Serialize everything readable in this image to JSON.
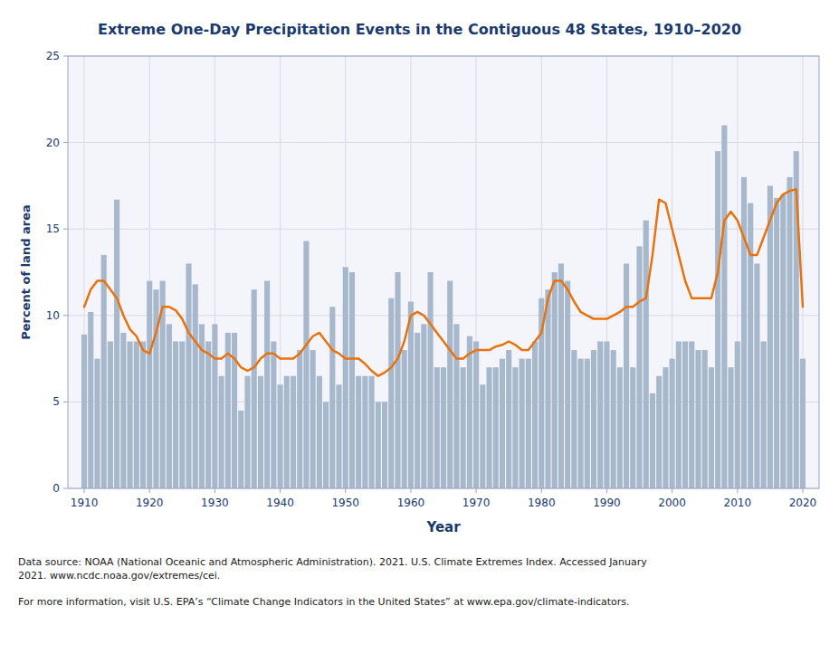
{
  "chart_data": {
    "type": "bar",
    "title": "Extreme One-Day Precipitation Events in the Contiguous 48 States, 1910–2020",
    "x_label": "Year",
    "y_label": "Percent of land area",
    "annotations": [
      "Data source: NOAA (National Oceanic and Atmospheric Administration). 2021. U.S. Climate Extremes Index. Accessed January\n2021. www.ncdc.noaa.gov/extremes/cei.",
      "For more information, visit U.S. EPA’s “Climate Change Indicators in the United States” at www.epa.gov/climate-indicators."
    ],
    "x": [
      1910,
      1911,
      1912,
      1913,
      1914,
      1915,
      1916,
      1917,
      1918,
      1919,
      1920,
      1921,
      1922,
      1923,
      1924,
      1925,
      1926,
      1927,
      1928,
      1929,
      1930,
      1931,
      1932,
      1933,
      1934,
      1935,
      1936,
      1937,
      1938,
      1939,
      1940,
      1941,
      1942,
      1943,
      1944,
      1945,
      1946,
      1947,
      1948,
      1949,
      1950,
      1951,
      1952,
      1953,
      1954,
      1955,
      1956,
      1957,
      1958,
      1959,
      1960,
      1961,
      1962,
      1963,
      1964,
      1965,
      1966,
      1967,
      1968,
      1969,
      1970,
      1971,
      1972,
      1973,
      1974,
      1975,
      1976,
      1977,
      1978,
      1979,
      1980,
      1981,
      1982,
      1983,
      1984,
      1985,
      1986,
      1987,
      1988,
      1989,
      1990,
      1991,
      1992,
      1993,
      1994,
      1995,
      1996,
      1997,
      1998,
      1999,
      2000,
      2001,
      2002,
      2003,
      2004,
      2005,
      2006,
      2007,
      2008,
      2009,
      2010,
      2011,
      2012,
      2013,
      2014,
      2015,
      2016,
      2017,
      2018,
      2019,
      2020
    ],
    "series": [
      {
        "type": "bar",
        "color": "#a8b8cc",
        "values": [
          8.9,
          10.2,
          7.5,
          13.5,
          8.5,
          16.7,
          9.0,
          8.5,
          8.5,
          8.5,
          12.0,
          11.5,
          12.0,
          9.5,
          8.5,
          8.5,
          13.0,
          11.8,
          9.5,
          8.5,
          9.5,
          6.5,
          9.0,
          9.0,
          4.5,
          6.5,
          11.5,
          6.5,
          12.0,
          8.5,
          6.0,
          6.5,
          6.5,
          8.0,
          14.3,
          8.0,
          6.5,
          5.0,
          10.5,
          6.0,
          12.8,
          12.5,
          6.5,
          6.5,
          6.5,
          5.0,
          5.0,
          11.0,
          12.5,
          8.0,
          10.8,
          9.0,
          9.5,
          12.5,
          7.0,
          7.0,
          12.0,
          9.5,
          7.0,
          8.8,
          8.5,
          6.0,
          7.0,
          7.0,
          7.5,
          8.0,
          7.0,
          7.5,
          7.5,
          8.5,
          11.0,
          11.5,
          12.5,
          13.0,
          12.0,
          8.0,
          7.5,
          7.5,
          8.0,
          8.5,
          8.5,
          8.0,
          7.0,
          13.0,
          7.0,
          14.0,
          15.5,
          5.5,
          6.5,
          7.0,
          7.5,
          8.5,
          8.5,
          8.5,
          8.0,
          8.0,
          7.0,
          19.5,
          21.0,
          7.0,
          8.5,
          18.0,
          16.5,
          13.0,
          8.5,
          17.5,
          16.8,
          17.0,
          18.0,
          19.5,
          7.5
        ]
      },
      {
        "type": "line",
        "color": "#e8720c",
        "values": [
          10.5,
          11.5,
          12.0,
          12.0,
          11.5,
          11.0,
          10.0,
          9.2,
          8.8,
          8.0,
          7.8,
          9.0,
          10.5,
          10.5,
          10.3,
          9.8,
          9.0,
          8.5,
          8.0,
          7.8,
          7.5,
          7.5,
          7.8,
          7.5,
          7.0,
          6.8,
          7.0,
          7.5,
          7.8,
          7.8,
          7.5,
          7.5,
          7.5,
          7.8,
          8.3,
          8.8,
          9.0,
          8.5,
          8.0,
          7.8,
          7.5,
          7.5,
          7.5,
          7.2,
          6.8,
          6.5,
          6.7,
          7.0,
          7.5,
          8.5,
          10.0,
          10.2,
          10.0,
          9.5,
          9.0,
          8.5,
          8.0,
          7.5,
          7.5,
          7.8,
          8.0,
          8.0,
          8.0,
          8.2,
          8.3,
          8.5,
          8.3,
          8.0,
          8.0,
          8.5,
          9.0,
          11.0,
          12.0,
          12.0,
          11.5,
          10.8,
          10.2,
          10.0,
          9.8,
          9.8,
          9.8,
          10.0,
          10.2,
          10.5,
          10.5,
          10.8,
          11.0,
          13.5,
          16.7,
          16.5,
          15.0,
          13.5,
          12.0,
          11.0,
          11.0,
          11.0,
          11.0,
          12.5,
          15.5,
          16.0,
          15.5,
          14.5,
          13.5,
          13.5,
          14.5,
          15.5,
          16.5,
          17.0,
          17.2,
          17.3,
          10.5
        ]
      }
    ],
    "xlim": [
      1907.5,
      2022.5
    ],
    "xticks": [
      1910,
      1920,
      1930,
      1940,
      1950,
      1960,
      1970,
      1980,
      1990,
      2000,
      2010,
      2020
    ],
    "ylim": [
      0,
      25
    ],
    "yticks": [
      0,
      5,
      10,
      15,
      20,
      25
    ],
    "grid": true
  }
}
